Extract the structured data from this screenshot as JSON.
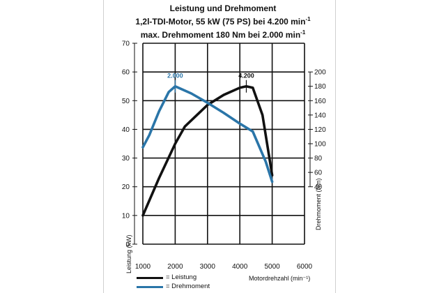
{
  "title": "Leistung und Drehmoment",
  "subtitle_line1_main": "1,2l-TDI-Motor, 55 kW (75 PS) bei 4.200 min",
  "subtitle_line1_sup": "-1",
  "subtitle_line2_main": "max. Drehmoment 180 Nm bei 2.000 min",
  "subtitle_line2_sup": "-1",
  "chart_data": {
    "type": "line",
    "x_ticks": [
      "1000",
      "2000",
      "3000",
      "4000",
      "5000",
      "6000"
    ],
    "xlim": [
      1000,
      6000
    ],
    "xlabel": "Motordrehzahl (min⁻¹)",
    "left_axis": {
      "label": "Leistung (kW)",
      "ticks": [
        "0",
        "10",
        "20",
        "30",
        "40",
        "50",
        "60",
        "70"
      ],
      "ylim": [
        0,
        70
      ]
    },
    "right_axis": {
      "label": "Drehmoment (Nm)",
      "ticks": [
        "40",
        "60",
        "80",
        "100",
        "120",
        "140",
        "160",
        "180",
        "200"
      ],
      "ylim": [
        40,
        200
      ]
    },
    "grid": true,
    "series": [
      {
        "name": "Leistung",
        "axis": "left",
        "color": "#111111",
        "points": [
          [
            1000,
            10
          ],
          [
            1500,
            23
          ],
          [
            2000,
            35
          ],
          [
            2300,
            41
          ],
          [
            3000,
            48.5
          ],
          [
            3500,
            52
          ],
          [
            4000,
            54.5
          ],
          [
            4200,
            55
          ],
          [
            4400,
            54.5
          ],
          [
            4700,
            45
          ],
          [
            5000,
            24
          ]
        ]
      },
      {
        "name": "Drehmoment",
        "axis": "right",
        "color": "#2a75a8",
        "points": [
          [
            1000,
            95
          ],
          [
            1200,
            112
          ],
          [
            1500,
            145
          ],
          [
            1800,
            172
          ],
          [
            2000,
            180
          ],
          [
            2500,
            170
          ],
          [
            3000,
            157
          ],
          [
            3500,
            143
          ],
          [
            4000,
            128
          ],
          [
            4400,
            117
          ],
          [
            4800,
            75
          ],
          [
            5000,
            47
          ]
        ]
      }
    ],
    "annotations": [
      {
        "text": "2.000",
        "x": 2000,
        "color": "#2a75a8"
      },
      {
        "text": "4.200",
        "x": 4200,
        "color": "#111111"
      }
    ],
    "legend_position": "bottom-left"
  },
  "legend": {
    "leistung_label": "= Leistung",
    "drehmoment_label": "= Drehmoment"
  }
}
